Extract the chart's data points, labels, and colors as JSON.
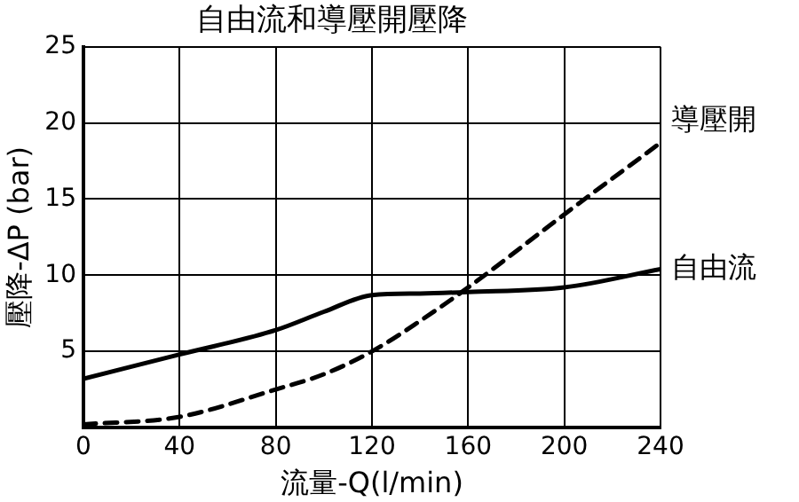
{
  "chart_data": {
    "type": "line",
    "title": "自由流和導壓開壓降",
    "xlabel": "流量-Q(l/min)",
    "ylabel": "壓降-ΔP (bar)",
    "x": [
      0,
      40,
      80,
      100,
      120,
      140,
      160,
      200,
      240
    ],
    "series": [
      {
        "name": "導壓開",
        "color": "#000000",
        "line_style": "dashed",
        "values": [
          0.2,
          0.7,
          2.5,
          3.5,
          5,
          7,
          9.2,
          14,
          18.7
        ]
      },
      {
        "name": "自由流",
        "color": "#000000",
        "line_style": "solid",
        "values": [
          3.2,
          4.8,
          6.4,
          7.6,
          8.7,
          8.8,
          8.9,
          9.2,
          10.4
        ]
      }
    ],
    "xlim": [
      0,
      240
    ],
    "xticks": [
      0,
      40,
      80,
      120,
      160,
      200,
      240
    ],
    "ylim": [
      0,
      25
    ],
    "yticks": [
      {
        "value": 0,
        "label": null
      },
      5,
      10,
      15,
      20,
      25
    ],
    "grid": true,
    "legend": false,
    "marker": "none"
  }
}
